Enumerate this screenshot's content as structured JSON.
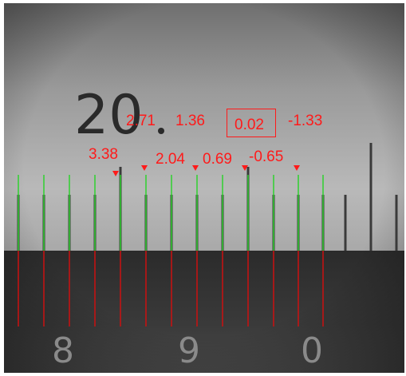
{
  "photo": {
    "description_icon": "ruler-macro-photo",
    "scale_labels": {
      "upper": "20",
      "lower": [
        "8",
        "9",
        "0"
      ]
    },
    "colors": {
      "annotation": "#ff1a1a",
      "green_line": "#2fd12f",
      "red_line": "#cc1010"
    }
  },
  "annotations": {
    "row1": [
      "2.71",
      "1.36",
      "0.02",
      "-1.33"
    ],
    "row2": [
      "3.38",
      "2.04",
      "0.69",
      "-0.65"
    ],
    "boxed_value": "0.02"
  }
}
